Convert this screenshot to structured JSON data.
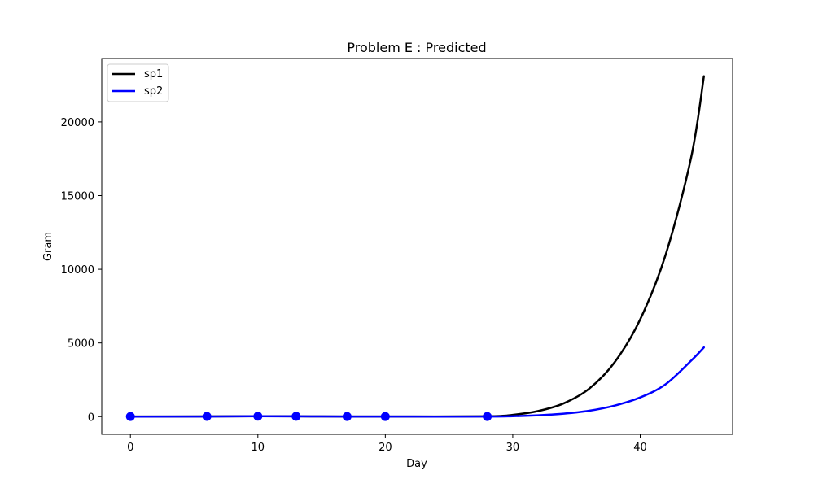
{
  "chart_data": {
    "type": "line",
    "title": "Problem E : Predicted",
    "xlabel": "Day",
    "ylabel": "Gram",
    "xlim": [
      -2.25,
      47.25
    ],
    "ylim": [
      -1200,
      24300
    ],
    "xticks": [
      0,
      10,
      20,
      30,
      40
    ],
    "yticks": [
      0,
      5000,
      10000,
      15000,
      20000
    ],
    "legend": "upper-left",
    "grid": false,
    "series": [
      {
        "name": "sp1",
        "color": "#000000",
        "x": [
          0,
          6,
          10,
          13,
          17,
          20,
          28,
          30,
          32,
          34,
          36,
          38,
          40,
          42,
          44,
          45
        ],
        "y": [
          5,
          12,
          30,
          20,
          10,
          8,
          20,
          120,
          380,
          900,
          1900,
          3700,
          6600,
          11000,
          17600,
          23100
        ]
      },
      {
        "name": "sp2",
        "color": "#0000ff",
        "x": [
          0,
          6,
          10,
          13,
          17,
          20,
          28,
          30,
          32,
          34,
          36,
          38,
          40,
          42,
          44,
          45
        ],
        "y": [
          2,
          10,
          25,
          18,
          10,
          6,
          5,
          30,
          90,
          200,
          400,
          750,
          1300,
          2200,
          3800,
          4700
        ]
      }
    ],
    "observed": {
      "color": "#0000ff",
      "x": [
        0,
        6,
        10,
        13,
        17,
        20,
        28
      ],
      "y": [
        5,
        12,
        30,
        20,
        10,
        8,
        5
      ]
    }
  }
}
